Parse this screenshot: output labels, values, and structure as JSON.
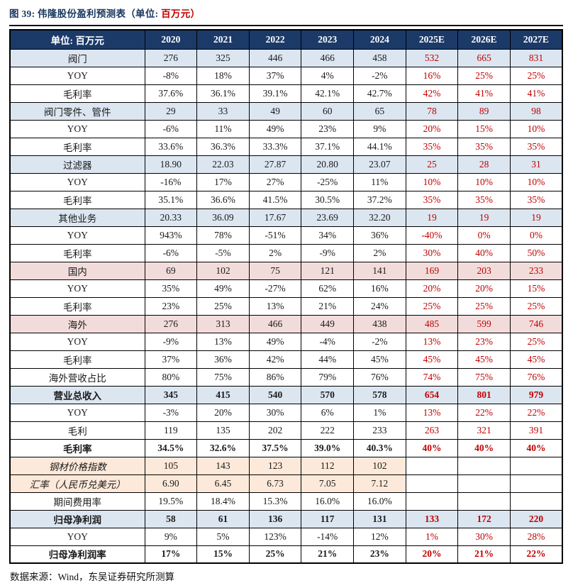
{
  "title": {
    "prefix": "图 39: 伟隆股份盈利预测表（单位: ",
    "unit": "百万元）"
  },
  "colors": {
    "header_bg": "#1B3A68",
    "segment_row_blue": "#DCE6F1",
    "region_row_pink": "#F2DCDB",
    "assumption_row_tan": "#FDE9D9",
    "forecast_text_red": "#C00000",
    "title_navy": "#17375E"
  },
  "table": {
    "header": [
      "单位: 百万元",
      "2020",
      "2021",
      "2022",
      "2023",
      "2024",
      "2025E",
      "2026E",
      "2027E"
    ],
    "rows": [
      {
        "label": "阀门",
        "style": "blue",
        "bold": false,
        "italic": false,
        "values": [
          "276",
          "325",
          "446",
          "466",
          "458",
          "532",
          "665",
          "831"
        ]
      },
      {
        "label": "YOY",
        "style": "white",
        "bold": false,
        "italic": false,
        "values": [
          "-8%",
          "18%",
          "37%",
          "4%",
          "-2%",
          "16%",
          "25%",
          "25%"
        ]
      },
      {
        "label": "毛利率",
        "style": "white",
        "bold": false,
        "italic": false,
        "values": [
          "37.6%",
          "36.1%",
          "39.1%",
          "42.1%",
          "42.7%",
          "42%",
          "41%",
          "41%"
        ]
      },
      {
        "label": "阀门零件、管件",
        "style": "blue",
        "bold": false,
        "italic": false,
        "values": [
          "29",
          "33",
          "49",
          "60",
          "65",
          "78",
          "89",
          "98"
        ]
      },
      {
        "label": "YOY",
        "style": "white",
        "bold": false,
        "italic": false,
        "values": [
          "-6%",
          "11%",
          "49%",
          "23%",
          "9%",
          "20%",
          "15%",
          "10%"
        ]
      },
      {
        "label": "毛利率",
        "style": "white",
        "bold": false,
        "italic": false,
        "values": [
          "33.6%",
          "36.3%",
          "33.3%",
          "37.1%",
          "44.1%",
          "35%",
          "35%",
          "35%"
        ]
      },
      {
        "label": "过滤器",
        "style": "blue",
        "bold": false,
        "italic": false,
        "values": [
          "18.90",
          "22.03",
          "27.87",
          "20.80",
          "23.07",
          "25",
          "28",
          "31"
        ]
      },
      {
        "label": "YOY",
        "style": "white",
        "bold": false,
        "italic": false,
        "values": [
          "-16%",
          "17%",
          "27%",
          "-25%",
          "11%",
          "10%",
          "10%",
          "10%"
        ]
      },
      {
        "label": "毛利率",
        "style": "white",
        "bold": false,
        "italic": false,
        "values": [
          "35.1%",
          "36.6%",
          "41.5%",
          "30.5%",
          "37.2%",
          "35%",
          "35%",
          "35%"
        ]
      },
      {
        "label": "其他业务",
        "style": "blue",
        "bold": false,
        "italic": false,
        "values": [
          "20.33",
          "36.09",
          "17.67",
          "23.69",
          "32.20",
          "19",
          "19",
          "19"
        ]
      },
      {
        "label": "YOY",
        "style": "white",
        "bold": false,
        "italic": false,
        "values": [
          "943%",
          "78%",
          "-51%",
          "34%",
          "36%",
          "-40%",
          "0%",
          "0%"
        ]
      },
      {
        "label": "毛利率",
        "style": "white",
        "bold": false,
        "italic": false,
        "values": [
          "-6%",
          "-5%",
          "2%",
          "-9%",
          "2%",
          "30%",
          "40%",
          "50%"
        ]
      },
      {
        "label": "国内",
        "style": "pink",
        "bold": false,
        "italic": false,
        "values": [
          "69",
          "102",
          "75",
          "121",
          "141",
          "169",
          "203",
          "233"
        ]
      },
      {
        "label": "YOY",
        "style": "white",
        "bold": false,
        "italic": false,
        "values": [
          "35%",
          "49%",
          "-27%",
          "62%",
          "16%",
          "20%",
          "20%",
          "15%"
        ]
      },
      {
        "label": "毛利率",
        "style": "white",
        "bold": false,
        "italic": false,
        "values": [
          "23%",
          "25%",
          "13%",
          "21%",
          "24%",
          "25%",
          "25%",
          "25%"
        ]
      },
      {
        "label": "海外",
        "style": "pink",
        "bold": false,
        "italic": false,
        "values": [
          "276",
          "313",
          "466",
          "449",
          "438",
          "485",
          "599",
          "746"
        ]
      },
      {
        "label": "YOY",
        "style": "white",
        "bold": false,
        "italic": false,
        "values": [
          "-9%",
          "13%",
          "49%",
          "-4%",
          "-2%",
          "13%",
          "23%",
          "25%"
        ]
      },
      {
        "label": "毛利率",
        "style": "white",
        "bold": false,
        "italic": false,
        "values": [
          "37%",
          "36%",
          "42%",
          "44%",
          "45%",
          "45%",
          "45%",
          "45%"
        ]
      },
      {
        "label": "海外营收占比",
        "style": "white",
        "bold": false,
        "italic": false,
        "values": [
          "80%",
          "75%",
          "86%",
          "79%",
          "76%",
          "74%",
          "75%",
          "76%"
        ]
      },
      {
        "label": "营业总收入",
        "style": "blue",
        "bold": true,
        "italic": false,
        "values": [
          "345",
          "415",
          "540",
          "570",
          "578",
          "654",
          "801",
          "979"
        ]
      },
      {
        "label": "YOY",
        "style": "white",
        "bold": false,
        "italic": false,
        "values": [
          "-3%",
          "20%",
          "30%",
          "6%",
          "1%",
          "13%",
          "22%",
          "22%"
        ]
      },
      {
        "label": "毛利",
        "style": "white",
        "bold": false,
        "italic": false,
        "values": [
          "119",
          "135",
          "202",
          "222",
          "233",
          "263",
          "321",
          "391"
        ]
      },
      {
        "label": "毛利率",
        "style": "white",
        "bold": true,
        "italic": false,
        "values": [
          "34.5%",
          "32.6%",
          "37.5%",
          "39.0%",
          "40.3%",
          "40%",
          "40%",
          "40%"
        ]
      },
      {
        "label": "钢材价格指数",
        "style": "tan",
        "bold": false,
        "italic": true,
        "values": [
          "105",
          "143",
          "123",
          "112",
          "102",
          "",
          "",
          ""
        ]
      },
      {
        "label": "汇率（人民币兑美元）",
        "style": "tan",
        "bold": false,
        "italic": true,
        "values": [
          "6.90",
          "6.45",
          "6.73",
          "7.05",
          "7.12",
          "",
          "",
          ""
        ]
      },
      {
        "label": "期间费用率",
        "style": "white",
        "bold": false,
        "italic": false,
        "values": [
          "19.5%",
          "18.4%",
          "15.3%",
          "16.0%",
          "16.0%",
          "",
          "",
          ""
        ]
      },
      {
        "label": "归母净利润",
        "style": "blue",
        "bold": true,
        "italic": false,
        "values": [
          "58",
          "61",
          "136",
          "117",
          "131",
          "133",
          "172",
          "220"
        ]
      },
      {
        "label": "YOY",
        "style": "white",
        "bold": false,
        "italic": false,
        "values": [
          "9%",
          "5%",
          "123%",
          "-14%",
          "12%",
          "1%",
          "30%",
          "28%"
        ]
      },
      {
        "label": "归母净利润率",
        "style": "white",
        "bold": true,
        "italic": false,
        "values": [
          "17%",
          "15%",
          "25%",
          "21%",
          "23%",
          "20%",
          "21%",
          "22%"
        ]
      }
    ]
  },
  "footer": {
    "text": "数据来源：Wind，东吴证券研究所测算"
  }
}
